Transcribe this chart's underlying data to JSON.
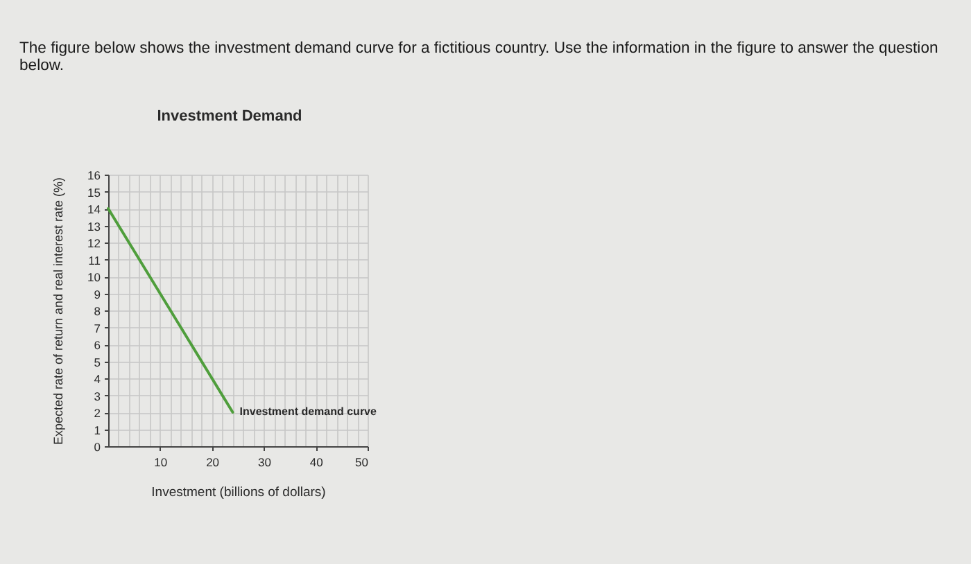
{
  "chart_data": {
    "type": "line",
    "title": "Investment Demand",
    "xlabel": "Investment (billions of dollars)",
    "ylabel": "Expected rate of return and real interest rate (%)",
    "annotations": [
      "The figure below shows the investment demand curve for a fictitious country. Use the information in the figure to answer the question below."
    ],
    "series": [
      {
        "name": "Investment demand curve",
        "color": "#4f9e3c",
        "x": [
          0,
          24
        ],
        "values": [
          14,
          2
        ]
      }
    ],
    "xlim": [
      0,
      50
    ],
    "ylim": [
      0,
      16
    ],
    "xticks": [
      {
        "value": 0,
        "label": null
      },
      {
        "value": 2,
        "label": null
      },
      {
        "value": 4,
        "label": null
      },
      {
        "value": 6,
        "label": null
      },
      {
        "value": 8,
        "label": null
      },
      10,
      {
        "value": 12,
        "label": null
      },
      {
        "value": 14,
        "label": null
      },
      {
        "value": 16,
        "label": null
      },
      {
        "value": 18,
        "label": null
      },
      20,
      {
        "value": 22,
        "label": null
      },
      {
        "value": 24,
        "label": null
      },
      {
        "value": 26,
        "label": null
      },
      {
        "value": 28,
        "label": null
      },
      30,
      {
        "value": 32,
        "label": null
      },
      {
        "value": 34,
        "label": null
      },
      {
        "value": 36,
        "label": null
      },
      {
        "value": 38,
        "label": null
      },
      40,
      {
        "value": 42,
        "label": null
      },
      {
        "value": 44,
        "label": null
      },
      {
        "value": 46,
        "label": null
      },
      {
        "value": 48,
        "label": null
      },
      50
    ],
    "yticks": [
      0,
      1,
      2,
      3,
      4,
      5,
      6,
      7,
      8,
      9,
      10,
      11,
      12,
      13,
      14,
      15,
      16
    ],
    "grid": true
  }
}
